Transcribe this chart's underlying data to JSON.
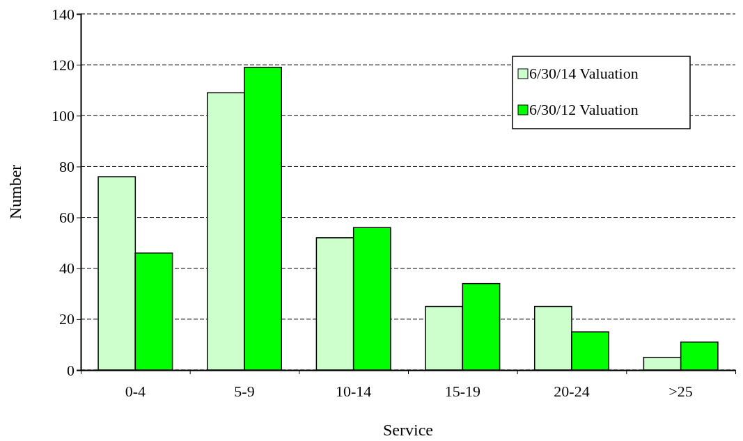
{
  "chart_data": {
    "type": "bar",
    "xlabel": "Service",
    "ylabel": "Number",
    "categories": [
      "0-4",
      "5-9",
      "10-14",
      "15-19",
      "20-24",
      ">25"
    ],
    "series": [
      {
        "name": "6/30/14 Valuation",
        "color": "#ccffcc",
        "values": [
          76,
          109,
          52,
          25,
          25,
          5
        ]
      },
      {
        "name": "6/30/12 Valuation",
        "color": "#00ff00",
        "values": [
          46,
          119,
          56,
          34,
          15,
          11
        ]
      }
    ],
    "ylim": [
      0,
      140
    ],
    "yticks": [
      0,
      20,
      40,
      60,
      80,
      100,
      120,
      140
    ],
    "grid": "y",
    "legend": "top right"
  }
}
